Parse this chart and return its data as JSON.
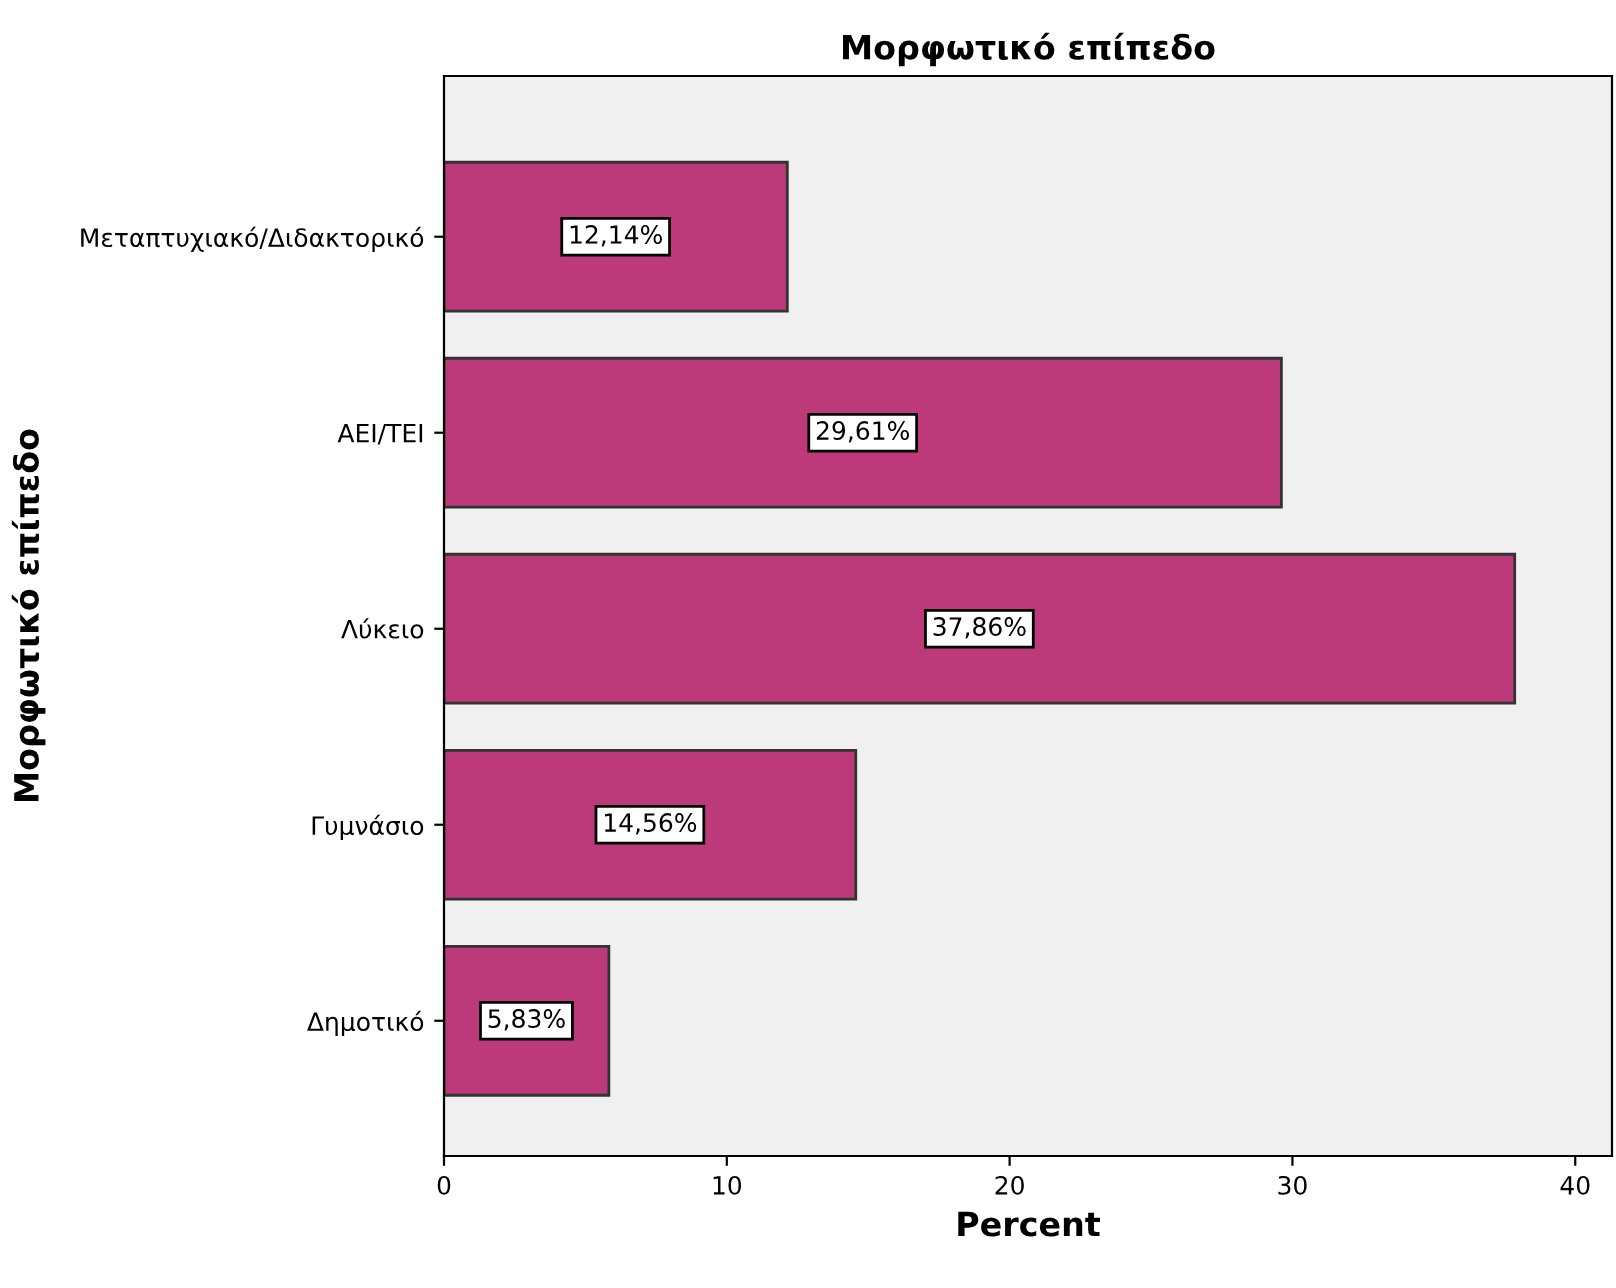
{
  "chart_data": {
    "type": "bar",
    "orientation": "horizontal",
    "title": "Μορφωτικό επίπεδο",
    "xlabel": "Percent",
    "ylabel": "Μορφωτικό επίπεδο",
    "categories": [
      "Μεταπτυχιακό/Διδακτορικό",
      "ΑΕΙ/ΤΕΙ",
      "Λύκειο",
      "Γυμνάσιο",
      "Δημοτικό"
    ],
    "values": [
      12.14,
      29.61,
      37.86,
      14.56,
      5.83
    ],
    "value_labels": [
      "12,14%",
      "29,61%",
      "37,86%",
      "14,56%",
      "5,83%"
    ],
    "color": "#bc3a7a",
    "xlim": [
      0,
      41.3
    ],
    "xticks": [
      0,
      10,
      20,
      30,
      40
    ],
    "grid": false
  }
}
